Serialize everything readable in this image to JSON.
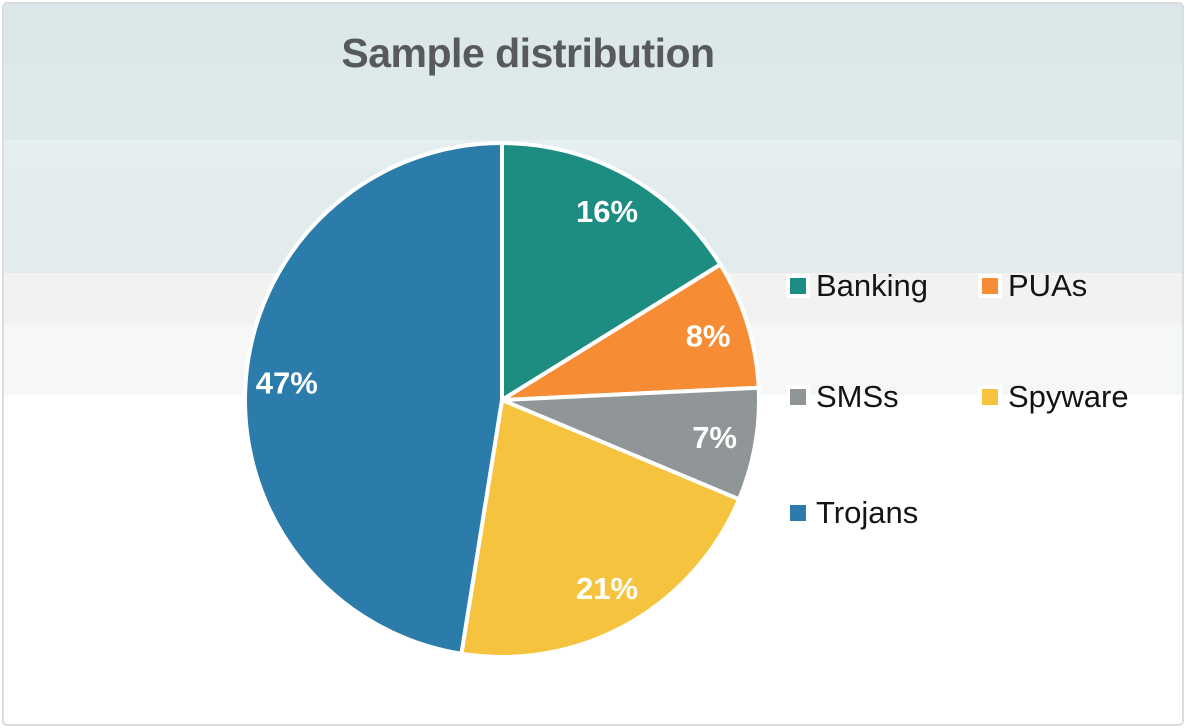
{
  "chart_data": {
    "type": "pie",
    "title": "Sample distribution",
    "categories": [
      "Banking",
      "PUAs",
      "SMSs",
      "Spyware",
      "Trojans"
    ],
    "values": [
      16,
      8,
      7,
      21,
      47
    ],
    "labels": [
      "16%",
      "8%",
      "7%",
      "21%",
      "47%"
    ],
    "colors": [
      "#1d8c81",
      "#f68c33",
      "#909697",
      "#f5c33d",
      "#2b7cab"
    ],
    "start_angle_deg": 0,
    "direction": "clockwise",
    "donut": false,
    "slice_border_color": "#ffffff",
    "value_label_color": "#ffffff",
    "title_color": "#57595a",
    "legend_position": "right"
  },
  "legend": {
    "items": [
      {
        "label": "Banking",
        "color": "#1d8c81"
      },
      {
        "label": "PUAs",
        "color": "#f68c33"
      },
      {
        "label": "SMSs",
        "color": "#909697"
      },
      {
        "label": "Spyware",
        "color": "#f5c33d"
      },
      {
        "label": "Trojans",
        "color": "#2b7cab"
      }
    ]
  }
}
